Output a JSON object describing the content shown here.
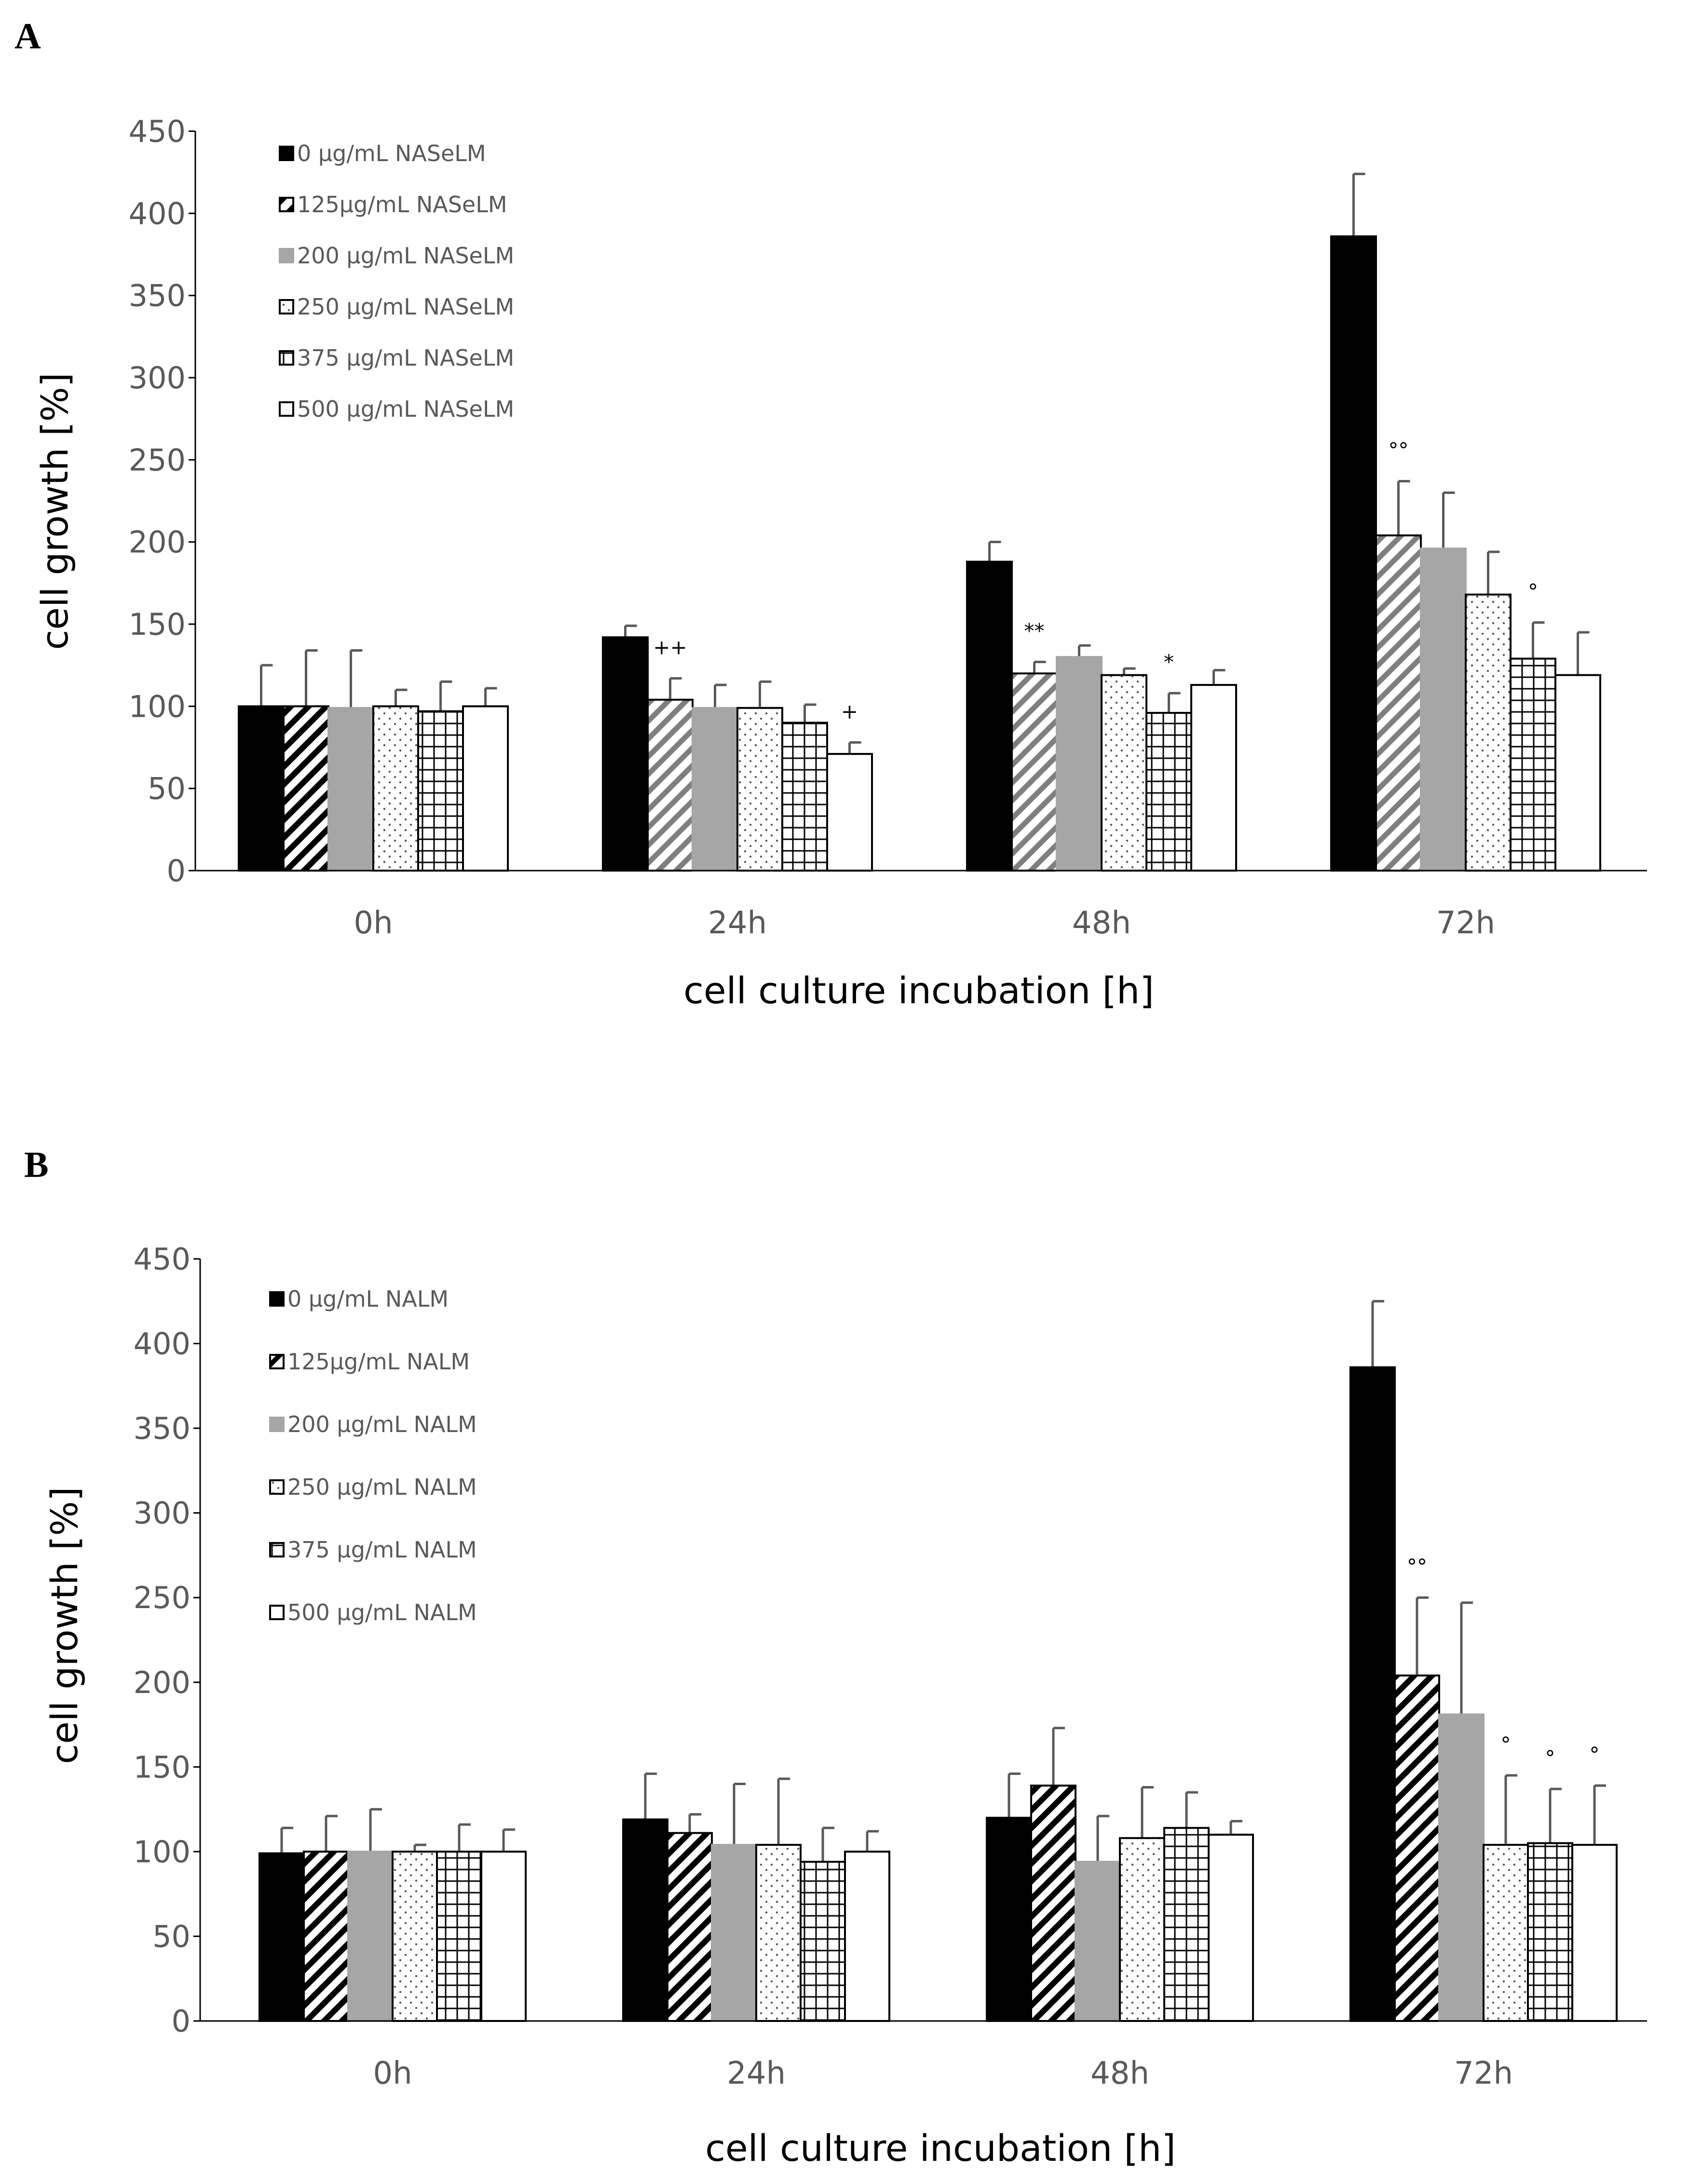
{
  "panels": [
    {
      "label": "A",
      "chart_data": {
        "type": "bar",
        "title": "",
        "xlabel": "cell culture incubation [h]",
        "ylabel": "cell growth [%]",
        "ylim": [
          0,
          450
        ],
        "yticks": [
          0,
          50,
          100,
          150,
          200,
          250,
          300,
          350,
          400,
          450
        ],
        "legend_position": "top-left",
        "categories": [
          "0h",
          "24h",
          "48h",
          "72h"
        ],
        "series": [
          {
            "name": "0 µg/mL NASeLM",
            "pattern": "solid",
            "values": [
              100,
              142,
              188,
              386
            ],
            "errors": [
              25,
              7,
              12,
              38
            ]
          },
          {
            "name": "125µg/mL NASeLM",
            "pattern": "diagonal",
            "values": [
              100,
              104,
              120,
              204
            ],
            "errors": [
              34,
              13,
              7,
              33
            ]
          },
          {
            "name": "200 µg/mL NASeLM",
            "pattern": "gray",
            "values": [
              99,
              99,
              130,
              196
            ],
            "errors": [
              35,
              14,
              7,
              34
            ]
          },
          {
            "name": "250 µg/mL NASeLM",
            "pattern": "dots",
            "values": [
              100,
              99,
              119,
              168
            ],
            "errors": [
              10,
              16,
              4,
              26
            ]
          },
          {
            "name": "375 µg/mL NASeLM",
            "pattern": "grid",
            "values": [
              97,
              90,
              96,
              129
            ],
            "errors": [
              18,
              11,
              12,
              22
            ]
          },
          {
            "name": "500 µg/mL NASeLM",
            "pattern": "white",
            "values": [
              100,
              71,
              113,
              119
            ],
            "errors": [
              11,
              7,
              9,
              26
            ]
          }
        ],
        "annotations": [
          {
            "text": "++",
            "category": "24h",
            "series_index": 1
          },
          {
            "text": "+",
            "category": "24h",
            "series_index": 5
          },
          {
            "text": "**",
            "category": "48h",
            "series_index": 1
          },
          {
            "text": "*",
            "category": "48h",
            "series_index": 4
          },
          {
            "text": "°°",
            "category": "72h",
            "series_index": 1
          },
          {
            "text": "°",
            "category": "72h",
            "series_index": 4
          }
        ]
      }
    },
    {
      "label": "B",
      "chart_data": {
        "type": "bar",
        "title": "",
        "xlabel": "cell culture incubation [h]",
        "ylabel": "cell growth [%]",
        "ylim": [
          0,
          450
        ],
        "yticks": [
          0,
          50,
          100,
          150,
          200,
          250,
          300,
          350,
          400,
          450
        ],
        "legend_position": "top-left",
        "categories": [
          "0h",
          "24h",
          "48h",
          "72h"
        ],
        "series": [
          {
            "name": "0 µg/mL NALM",
            "pattern": "solid",
            "values": [
              99,
              119,
              120,
              386
            ],
            "errors": [
              15,
              27,
              26,
              39
            ]
          },
          {
            "name": "125µg/mL NALM",
            "pattern": "diagonal",
            "values": [
              100,
              111,
              139,
              204
            ],
            "errors": [
              21,
              11,
              34,
              46
            ]
          },
          {
            "name": "200 µg/mL NALM",
            "pattern": "gray",
            "values": [
              100,
              104,
              94,
              181
            ],
            "errors": [
              25,
              36,
              27,
              66
            ]
          },
          {
            "name": "250 µg/mL NALM",
            "pattern": "dots",
            "values": [
              100,
              104,
              108,
              104
            ],
            "errors": [
              4,
              39,
              30,
              41
            ]
          },
          {
            "name": "375 µg/mL NALM",
            "pattern": "grid",
            "values": [
              100,
              94,
              114,
              105
            ],
            "errors": [
              16,
              20,
              21,
              32
            ]
          },
          {
            "name": "500 µg/mL NALM",
            "pattern": "white",
            "values": [
              100,
              100,
              110,
              104
            ],
            "errors": [
              13,
              12,
              8,
              35
            ]
          }
        ],
        "annotations": [
          {
            "text": "°°",
            "category": "72h",
            "series_index": 1
          },
          {
            "text": "°",
            "category": "72h",
            "series_index": 3
          },
          {
            "text": "°",
            "category": "72h",
            "series_index": 4
          },
          {
            "text": "°",
            "category": "72h",
            "series_index": 5
          }
        ]
      }
    }
  ]
}
